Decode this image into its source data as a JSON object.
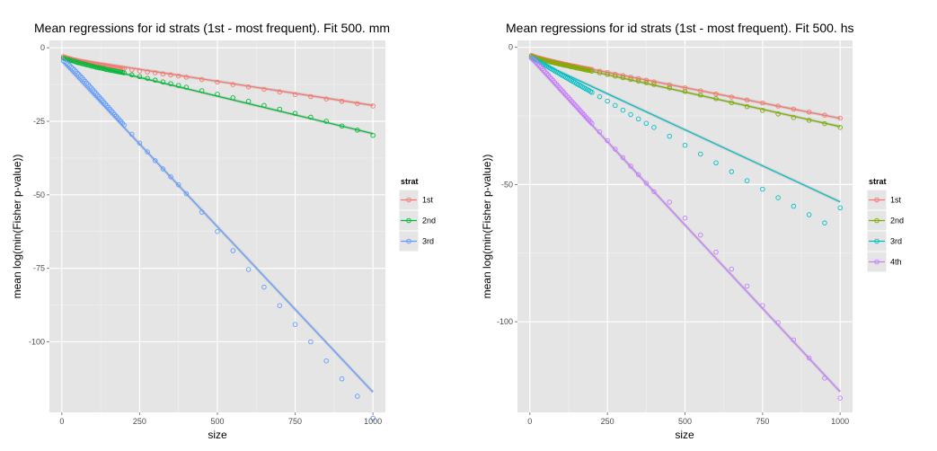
{
  "chart_data": [
    {
      "type": "scatter",
      "title": "Mean regressions for id strats (1st - most frequent). Fit 500. mm",
      "xlabel": "size",
      "ylabel": "mean log(min(Fisher p-value))",
      "xlim": [
        -40,
        1040
      ],
      "ylim": [
        -124,
        2.5
      ],
      "xticks": [
        0,
        250,
        500,
        750,
        1000
      ],
      "yticks": [
        0,
        -25,
        -50,
        -75,
        -100
      ],
      "grid": true,
      "legend_title": "strat",
      "legend_position": "right",
      "fit_lines": true,
      "x": [
        5,
        10,
        15,
        20,
        25,
        30,
        35,
        40,
        45,
        50,
        55,
        60,
        65,
        70,
        75,
        80,
        85,
        90,
        95,
        100,
        105,
        110,
        115,
        120,
        125,
        130,
        135,
        140,
        145,
        150,
        155,
        160,
        165,
        170,
        175,
        180,
        185,
        190,
        195,
        200,
        225,
        250,
        275,
        300,
        325,
        350,
        375,
        400,
        450,
        500,
        550,
        600,
        650,
        700,
        750,
        800,
        850,
        900,
        950,
        1000
      ],
      "series": [
        {
          "name": "1st",
          "color": "#F8766D",
          "values": [
            -3.0,
            -3.2,
            -3.4,
            -3.5,
            -3.7,
            -3.8,
            -4.0,
            -4.1,
            -4.2,
            -4.4,
            -4.5,
            -4.6,
            -4.7,
            -4.8,
            -4.9,
            -5.0,
            -5.1,
            -5.2,
            -5.3,
            -5.4,
            -5.5,
            -5.6,
            -5.7,
            -5.8,
            -5.9,
            -6.0,
            -6.1,
            -6.1,
            -6.2,
            -6.3,
            -6.4,
            -6.5,
            -6.6,
            -6.6,
            -6.7,
            -6.8,
            -6.9,
            -7.0,
            -7.0,
            -7.1,
            -7.5,
            -7.9,
            -8.2,
            -8.5,
            -8.9,
            -9.2,
            -9.6,
            -10.0,
            -10.8,
            -11.7,
            -12.5,
            -13.3,
            -14.1,
            -15.0,
            -15.9,
            -16.6,
            -17.4,
            -18.2,
            -19.0,
            -19.8
          ],
          "fit": {
            "intercept": -3.2,
            "slope": -0.0164
          }
        },
        {
          "name": "2nd",
          "color": "#00BA38",
          "values": [
            -3.5,
            -3.7,
            -3.9,
            -4.0,
            -4.2,
            -4.3,
            -4.5,
            -4.6,
            -4.8,
            -5.0,
            -5.1,
            -5.2,
            -5.4,
            -5.5,
            -5.6,
            -5.8,
            -5.9,
            -6.0,
            -6.2,
            -6.3,
            -6.4,
            -6.6,
            -6.7,
            -6.8,
            -6.9,
            -7.0,
            -7.1,
            -7.3,
            -7.4,
            -7.5,
            -7.6,
            -7.7,
            -7.8,
            -7.9,
            -8.0,
            -8.1,
            -8.2,
            -8.3,
            -8.4,
            -8.5,
            -9.2,
            -9.8,
            -10.4,
            -11.0,
            -11.6,
            -12.2,
            -12.8,
            -13.4,
            -14.6,
            -15.8,
            -17.0,
            -18.2,
            -19.6,
            -20.9,
            -22.3,
            -23.6,
            -25.0,
            -26.6,
            -28.0,
            -29.8
          ],
          "fit": {
            "intercept": -3.7,
            "slope": -0.0255
          }
        },
        {
          "name": "3rd",
          "color": "#619CFF",
          "values": [
            -4.5,
            -4.8,
            -5.2,
            -5.6,
            -6.0,
            -6.5,
            -7.0,
            -7.5,
            -8.0,
            -8.6,
            -9.1,
            -9.7,
            -10.2,
            -10.8,
            -11.4,
            -12.0,
            -12.5,
            -13.1,
            -13.7,
            -14.3,
            -14.9,
            -15.5,
            -16.1,
            -16.7,
            -17.3,
            -17.9,
            -18.5,
            -19.1,
            -19.7,
            -20.3,
            -20.9,
            -21.5,
            -22.1,
            -22.7,
            -23.3,
            -23.9,
            -24.5,
            -25.1,
            -25.7,
            -26.3,
            -29.4,
            -32.4,
            -35.4,
            -38.4,
            -41.2,
            -43.9,
            -46.6,
            -49.6,
            -55.9,
            -62.5,
            -69.0,
            -75.4,
            -81.4,
            -87.7,
            -94.1,
            -100.0,
            -106.5,
            -112.6,
            -118.5,
            -126.0
          ],
          "fit": {
            "intercept": -4.6,
            "slope": -0.1125
          }
        }
      ]
    },
    {
      "type": "scatter",
      "title": "Mean regressions for id strats (1st - most frequent). Fit 500. hs",
      "xlabel": "size",
      "ylabel": "mean log(min(Fisher p-value))",
      "xlim": [
        -40,
        1040
      ],
      "ylim": [
        -133,
        2.5
      ],
      "xticks": [
        0,
        250,
        500,
        750,
        1000
      ],
      "yticks": [
        0,
        -50,
        -100
      ],
      "grid": true,
      "legend_title": "strat",
      "legend_position": "right",
      "fit_lines": true,
      "x": [
        5,
        10,
        15,
        20,
        25,
        30,
        35,
        40,
        45,
        50,
        55,
        60,
        65,
        70,
        75,
        80,
        85,
        90,
        95,
        100,
        105,
        110,
        115,
        120,
        125,
        130,
        135,
        140,
        145,
        150,
        155,
        160,
        165,
        170,
        175,
        180,
        185,
        190,
        195,
        200,
        225,
        250,
        275,
        300,
        325,
        350,
        375,
        400,
        450,
        500,
        550,
        600,
        650,
        700,
        750,
        800,
        850,
        900,
        950,
        1000
      ],
      "series": [
        {
          "name": "1st",
          "color": "#F8766D",
          "values": [
            -3.0,
            -3.2,
            -3.4,
            -3.6,
            -3.8,
            -3.9,
            -4.1,
            -4.2,
            -4.4,
            -4.5,
            -4.7,
            -4.8,
            -4.9,
            -5.1,
            -5.2,
            -5.3,
            -5.5,
            -5.6,
            -5.7,
            -5.8,
            -6.0,
            -6.1,
            -6.2,
            -6.3,
            -6.5,
            -6.6,
            -6.7,
            -6.8,
            -6.9,
            -7.0,
            -7.1,
            -7.3,
            -7.4,
            -7.5,
            -7.6,
            -7.7,
            -7.8,
            -7.9,
            -8.0,
            -8.1,
            -8.7,
            -9.2,
            -9.8,
            -10.3,
            -10.9,
            -11.4,
            -12.0,
            -12.6,
            -13.7,
            -14.8,
            -15.9,
            -17.0,
            -18.1,
            -19.2,
            -20.3,
            -21.4,
            -22.5,
            -23.6,
            -24.7,
            -25.8
          ],
          "fit": {
            "intercept": -3.5,
            "slope": -0.0224
          }
        },
        {
          "name": "2nd",
          "color": "#7CAE00",
          "values": [
            -3.3,
            -3.5,
            -3.7,
            -3.9,
            -4.1,
            -4.2,
            -4.4,
            -4.5,
            -4.7,
            -4.8,
            -5.0,
            -5.1,
            -5.3,
            -5.4,
            -5.5,
            -5.7,
            -5.8,
            -5.9,
            -6.1,
            -6.2,
            -6.3,
            -6.5,
            -6.6,
            -6.7,
            -6.8,
            -7.0,
            -7.1,
            -7.2,
            -7.3,
            -7.5,
            -7.6,
            -7.7,
            -7.8,
            -7.9,
            -8.1,
            -8.2,
            -8.3,
            -8.4,
            -8.5,
            -8.7,
            -9.3,
            -9.9,
            -10.5,
            -11.1,
            -11.7,
            -12.3,
            -12.9,
            -13.5,
            -14.8,
            -16.1,
            -17.4,
            -18.7,
            -20.2,
            -21.6,
            -23.0,
            -24.3,
            -25.6,
            -26.6,
            -27.8,
            -29.2
          ],
          "fit": {
            "intercept": -3.7,
            "slope": -0.0252
          }
        },
        {
          "name": "3rd",
          "color": "#00BFC4",
          "values": [
            -3.8,
            -4.0,
            -4.3,
            -4.6,
            -4.9,
            -5.2,
            -5.6,
            -5.9,
            -6.2,
            -6.6,
            -6.9,
            -7.2,
            -7.6,
            -7.9,
            -8.2,
            -8.6,
            -8.9,
            -9.2,
            -9.5,
            -9.9,
            -10.2,
            -10.5,
            -10.9,
            -11.2,
            -11.5,
            -11.9,
            -12.2,
            -12.5,
            -12.8,
            -13.2,
            -13.5,
            -13.8,
            -14.1,
            -14.5,
            -14.8,
            -15.1,
            -15.4,
            -15.7,
            -16.1,
            -16.4,
            -18.0,
            -19.6,
            -21.2,
            -22.9,
            -24.5,
            -26.1,
            -27.7,
            -29.2,
            -32.4,
            -35.7,
            -38.9,
            -42.1,
            -45.3,
            -48.6,
            -51.7,
            -54.8,
            -57.9,
            -61.0,
            -64.0,
            -58.5
          ],
          "fit": {
            "intercept": -3.8,
            "slope": -0.0525
          }
        },
        {
          "name": "4th",
          "color": "#C77CFF",
          "values": [
            -4.0,
            -4.4,
            -4.9,
            -5.4,
            -6.0,
            -6.6,
            -7.2,
            -7.8,
            -8.4,
            -9.0,
            -9.6,
            -10.2,
            -10.9,
            -11.5,
            -12.1,
            -12.8,
            -13.4,
            -14.0,
            -14.7,
            -15.3,
            -15.9,
            -16.5,
            -17.2,
            -17.8,
            -18.4,
            -19.0,
            -19.7,
            -20.3,
            -20.9,
            -21.5,
            -22.1,
            -22.8,
            -23.4,
            -24.0,
            -24.6,
            -25.3,
            -25.9,
            -26.5,
            -27.1,
            -27.7,
            -30.8,
            -34.0,
            -37.1,
            -40.2,
            -43.3,
            -46.4,
            -49.5,
            -52.6,
            -56.4,
            -62.2,
            -68.4,
            -74.6,
            -80.8,
            -87.0,
            -94.1,
            -100.3,
            -106.6,
            -113.2,
            -120.5,
            -127.8
          ],
          "fit": {
            "intercept": -4.0,
            "slope": -0.1215
          }
        }
      ]
    }
  ]
}
